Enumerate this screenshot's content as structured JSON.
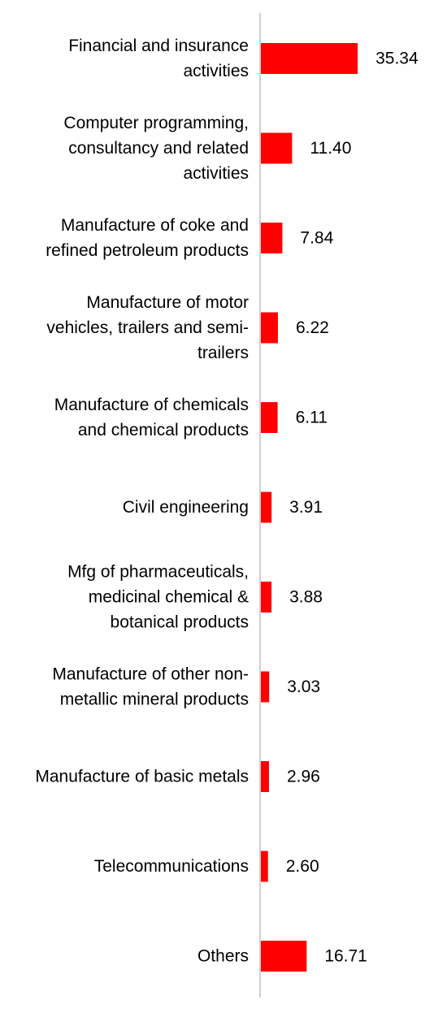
{
  "chart_data": {
    "type": "bar",
    "orientation": "horizontal",
    "categories": [
      "Financial and insurance activities",
      "Computer programming, consultancy and related activities",
      "Manufacture of coke and refined petroleum products",
      "Manufacture of motor vehicles, trailers and semi-trailers",
      "Manufacture of chemicals and chemical products",
      "Civil engineering",
      "Mfg of pharmaceuticals, medicinal chemical & botanical products",
      "Manufacture of other non-metallic mineral products",
      "Manufacture of basic metals",
      "Telecommunications",
      "Others"
    ],
    "category_lines": [
      [
        "Financial and insurance",
        "activities"
      ],
      [
        "Computer programming,",
        "consultancy and related",
        "activities"
      ],
      [
        "Manufacture of coke and",
        "refined petroleum products"
      ],
      [
        "Manufacture of motor",
        "vehicles, trailers and semi-",
        "trailers"
      ],
      [
        "Manufacture of chemicals",
        "and chemical products"
      ],
      [
        "Civil engineering"
      ],
      [
        "Mfg of pharmaceuticals,",
        "medicinal chemical &",
        "botanical products"
      ],
      [
        "Manufacture of other non-",
        "metallic mineral products"
      ],
      [
        "Manufacture of basic metals"
      ],
      [
        "Telecommunications"
      ],
      [
        "Others"
      ]
    ],
    "values": [
      35.34,
      11.4,
      7.84,
      6.22,
      6.11,
      3.91,
      3.88,
      3.03,
      2.96,
      2.6,
      16.71
    ],
    "value_labels": [
      "35.34",
      "11.40",
      "7.84",
      "6.22",
      "6.11",
      "3.91",
      "3.88",
      "3.03",
      "2.96",
      "2.60",
      "16.71"
    ],
    "title": "",
    "xlabel": "",
    "ylabel": "",
    "grid": false,
    "legend": "none",
    "bar_color": "#ff0000",
    "axis_color": "#d0d0d0"
  }
}
